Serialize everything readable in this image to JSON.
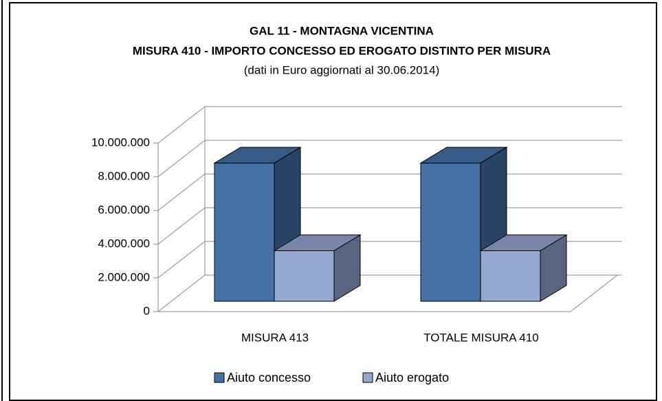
{
  "chart_data": {
    "type": "bar3d",
    "title": "GAL 11 - MONTAGNA VICENTINA",
    "subtitle": "MISURA 410  - IMPORTO CONCESSO ED EROGATO DISTINTO PER MISURA",
    "note": "(dati  in Euro aggiornati al 30.06.2014)",
    "categories": [
      "MISURA 413",
      "TOTALE MISURA 410"
    ],
    "series": [
      {
        "name": "Aiuto concesso",
        "color": "#4472a8",
        "values": [
          8200000,
          8200000
        ]
      },
      {
        "name": "Aiuto erogato",
        "color": "#95a8d2",
        "values": [
          3000000,
          3000000
        ]
      }
    ],
    "ylim": [
      0,
      10000000
    ],
    "yticks": [
      0,
      {
        "value": 2000000,
        "label": "2.000.000"
      },
      {
        "value": 4000000,
        "label": "4.000.000"
      },
      {
        "value": 6000000,
        "label": "6.000.000"
      },
      {
        "value": 8000000,
        "label": "8.000.000"
      },
      {
        "value": 10000000,
        "label": "10.000.000"
      }
    ],
    "grid": true,
    "legend": "bottom"
  }
}
